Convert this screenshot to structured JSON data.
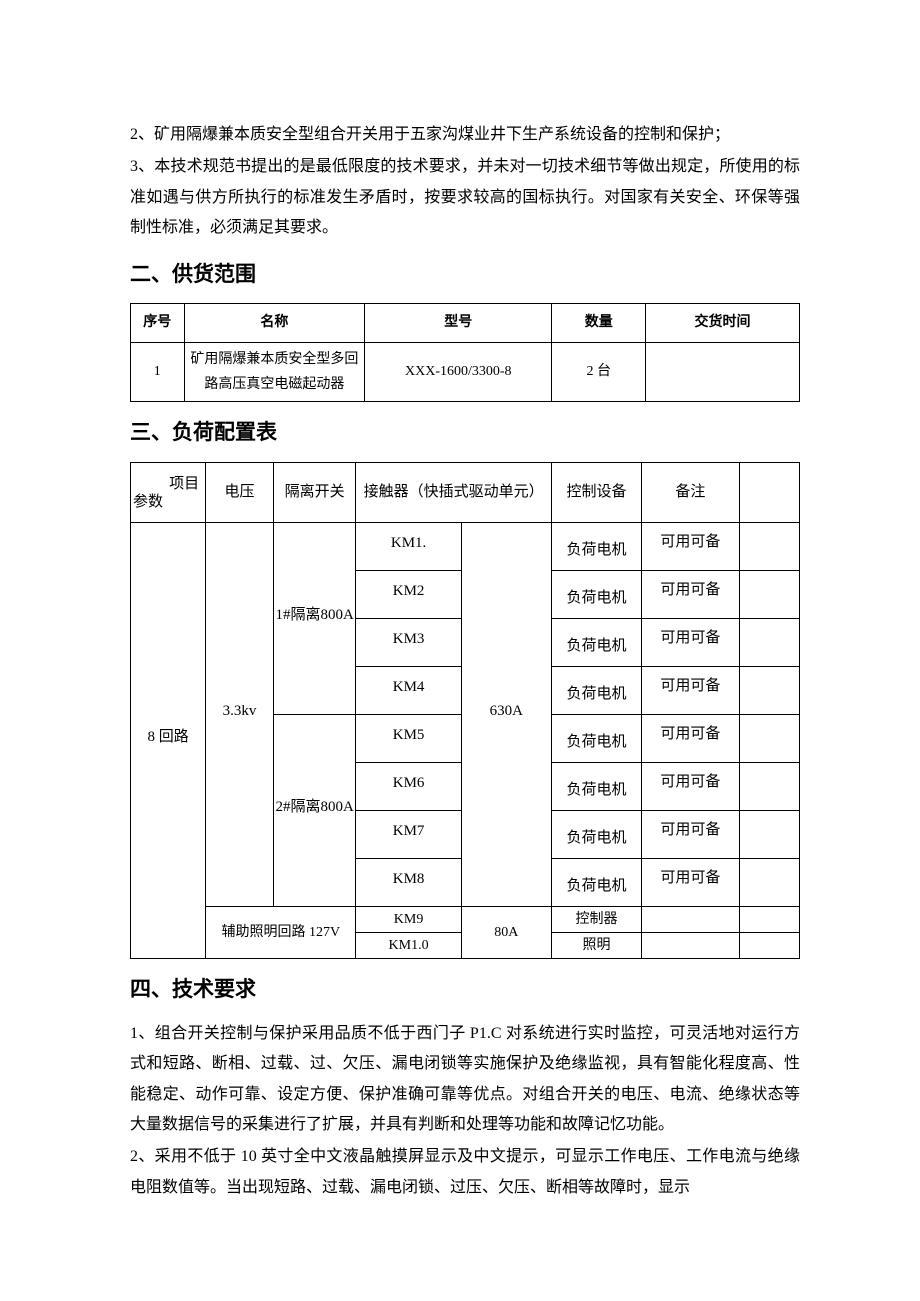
{
  "intro": {
    "line2": "2、矿用隔爆兼本质安全型组合开关用于五家沟煤业井下生产系统设备的控制和保护；",
    "line3": "3、本技术规范书提出的是最低限度的技术要求，并未对一切技术细节等做出规定，所使用的标准如遇与供方所执行的标准发生矛盾时，按要求较高的国标执行。对国家有关安全、环保等强制性标准，必须满足其要求。"
  },
  "section2": {
    "heading": "二、供货范围",
    "headers": [
      "序号",
      "名称",
      "型号",
      "数量",
      "交货时间"
    ],
    "row": {
      "seq": "1",
      "name": "矿用隔爆兼本质安全型多回路高压真空电磁起动器",
      "model": "XXX-1600/3300-8",
      "qty": "2 台",
      "time": ""
    }
  },
  "section3": {
    "heading": "三、负荷配置表",
    "header_labels": {
      "param_top": "项目",
      "param_bottom": "参数",
      "voltage": "电压",
      "isolation": "隔离开关",
      "contactor": "接触器（快插式驱动单元）",
      "control": "控制设备",
      "remark": "备注"
    },
    "param_col": "8 回路",
    "voltage_col": "3.3kv",
    "isolation_1": "1#隔离800A",
    "isolation_2": "2#隔离800A",
    "current_col": "630A",
    "km_rows": [
      "KM1.",
      "KM2",
      "KM3",
      "KM4",
      "KM5",
      "KM6",
      "KM7",
      "KM8"
    ],
    "device_value": "负荷电机",
    "note_value": "可用可备",
    "aux_row_label": "辅助照明回路 127V",
    "aux_km9": "KM9",
    "aux_km10": "KM1.0",
    "aux_current": "80A",
    "aux_device9": "控制器",
    "aux_device10": "照明"
  },
  "section4": {
    "heading": "四、技术要求",
    "para1": "1、组合开关控制与保护采用品质不低于西门子 P1.C 对系统进行实时监控，可灵活地对运行方式和短路、断相、过载、过、欠压、漏电闭锁等实施保护及绝缘监视，具有智能化程度高、性能稳定、动作可靠、设定方便、保护准确可靠等优点。对组合开关的电压、电流、绝缘状态等大量数据信号的采集进行了扩展，并具有判断和处理等功能和故障记忆功能。",
    "para2": "2、采用不低于 10 英寸全中文液晶触摸屏显示及中文提示，可显示工作电压、工作电流与绝缘电阻数值等。当出现短路、过载、漏电闭锁、过压、欠压、断相等故障时，显示"
  }
}
